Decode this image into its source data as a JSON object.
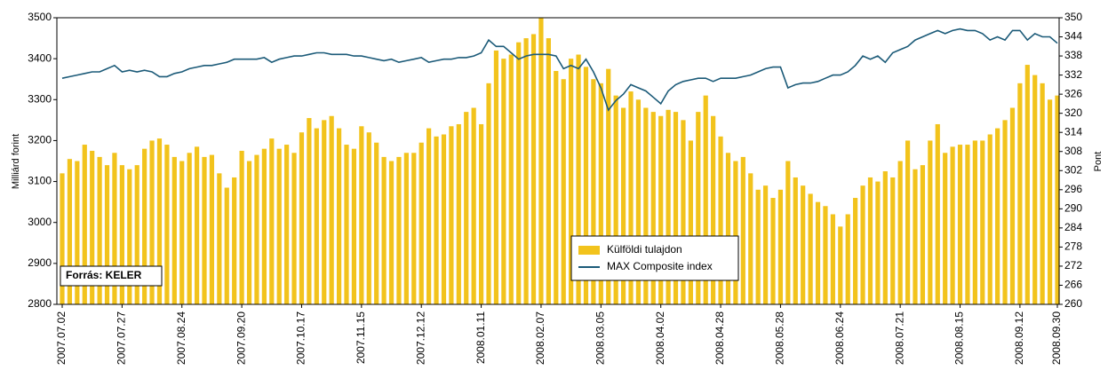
{
  "chart_data": {
    "type": "bar-line",
    "y_label": "Milliárd forint",
    "y2_label": "Pont",
    "source": "Forrás: KELER",
    "categories": [
      "2007.07.02",
      null,
      null,
      null,
      null,
      null,
      null,
      null,
      "2007.07.27",
      null,
      null,
      null,
      null,
      null,
      null,
      null,
      "2007.08.24",
      null,
      null,
      null,
      null,
      null,
      null,
      null,
      "2007.09.20",
      null,
      null,
      null,
      null,
      null,
      null,
      null,
      "2007.10.17",
      null,
      null,
      null,
      null,
      null,
      null,
      null,
      "2007.11.15",
      null,
      null,
      null,
      null,
      null,
      null,
      null,
      "2007.12.12",
      null,
      null,
      null,
      null,
      null,
      null,
      null,
      "2008.01.11",
      null,
      null,
      null,
      null,
      null,
      null,
      null,
      "2008.02.07",
      null,
      null,
      null,
      null,
      null,
      null,
      null,
      "2008.03.05",
      null,
      null,
      null,
      null,
      null,
      null,
      null,
      "2008.04.02",
      null,
      null,
      null,
      null,
      null,
      null,
      null,
      "2008.04.28",
      null,
      null,
      null,
      null,
      null,
      null,
      null,
      "2008.05.28",
      null,
      null,
      null,
      null,
      null,
      null,
      null,
      "2008.06.24",
      null,
      null,
      null,
      null,
      null,
      null,
      null,
      "2008.07.21",
      null,
      null,
      null,
      null,
      null,
      null,
      null,
      "2008.08.15",
      null,
      null,
      null,
      null,
      null,
      null,
      null,
      "2008.09.12",
      null,
      null,
      null,
      null,
      "2008.09.30"
    ],
    "series": [
      {
        "name": "Külföldi tulajdon",
        "kind": "bar",
        "color": "#f2c31c",
        "values": [
          3120,
          3155,
          3150,
          3190,
          3175,
          3160,
          3140,
          3170,
          3140,
          3130,
          3140,
          3180,
          3200,
          3205,
          3190,
          3160,
          3150,
          3170,
          3185,
          3160,
          3165,
          3120,
          3085,
          3110,
          3175,
          3150,
          3165,
          3180,
          3205,
          3180,
          3190,
          3170,
          3220,
          3255,
          3230,
          3250,
          3260,
          3230,
          3190,
          3180,
          3235,
          3220,
          3195,
          3160,
          3150,
          3160,
          3170,
          3170,
          3195,
          3230,
          3210,
          3215,
          3235,
          3240,
          3270,
          3280,
          3240,
          3340,
          3420,
          3400,
          3410,
          3440,
          3450,
          3460,
          3500,
          3450,
          3370,
          3350,
          3400,
          3410,
          3380,
          3350,
          3340,
          3375,
          3310,
          3280,
          3320,
          3300,
          3280,
          3270,
          3260,
          3275,
          3270,
          3250,
          3200,
          3270,
          3310,
          3260,
          3210,
          3170,
          3150,
          3160,
          3120,
          3080,
          3090,
          3060,
          3080,
          3150,
          3110,
          3090,
          3070,
          3050,
          3040,
          3020,
          2990,
          3020,
          3060,
          3090,
          3110,
          3100,
          3125,
          3110,
          3150,
          3200,
          3130,
          3140,
          3200,
          3240,
          3170,
          3185,
          3190,
          3190,
          3200,
          3200,
          3215,
          3230,
          3250,
          3280,
          3340,
          3385,
          3360,
          3340,
          3300,
          3310
        ]
      },
      {
        "name": "MAX Composite index",
        "kind": "line",
        "axis": "y2",
        "color": "#1b5a78",
        "values": [
          331,
          331.5,
          332,
          332.5,
          333,
          333,
          334,
          335,
          333,
          333.5,
          333,
          333.5,
          333,
          331.5,
          331.5,
          332.5,
          333,
          334,
          334.5,
          335,
          335,
          335.5,
          336,
          337,
          337,
          337,
          337,
          337.5,
          336,
          337,
          337.5,
          338,
          338,
          338.5,
          339,
          339,
          338.5,
          338.5,
          338.5,
          338,
          338,
          337.5,
          337,
          336.5,
          337,
          336,
          336.5,
          337,
          337.5,
          336,
          336.5,
          337,
          337,
          337.5,
          337.5,
          338,
          339,
          343,
          341,
          341,
          339,
          337,
          338,
          338.5,
          338.5,
          338.5,
          338,
          334,
          335,
          334,
          337,
          333,
          328,
          321,
          324,
          326,
          329,
          328,
          327,
          325,
          323,
          327,
          329,
          330,
          330.5,
          331,
          331,
          330,
          331,
          331,
          331,
          331.5,
          332,
          333,
          334,
          334.5,
          334.5,
          328,
          329,
          329.5,
          329.5,
          330,
          331,
          332,
          332,
          333,
          335,
          338,
          337,
          338,
          336,
          339,
          340,
          341,
          343,
          344,
          345,
          346,
          345,
          346,
          346.5,
          346,
          346,
          345,
          343,
          344,
          343,
          346,
          346,
          343,
          345,
          344,
          344,
          342
        ]
      }
    ],
    "ylim": [
      2800,
      3500
    ],
    "yticks": [
      2800,
      2900,
      3000,
      3100,
      3200,
      3300,
      3400,
      3500
    ],
    "y2lim": [
      260,
      350
    ],
    "y2ticks": [
      260,
      266,
      272,
      278,
      284,
      290,
      296,
      302,
      308,
      314,
      320,
      326,
      332,
      338,
      344,
      350
    ],
    "grid": false
  }
}
